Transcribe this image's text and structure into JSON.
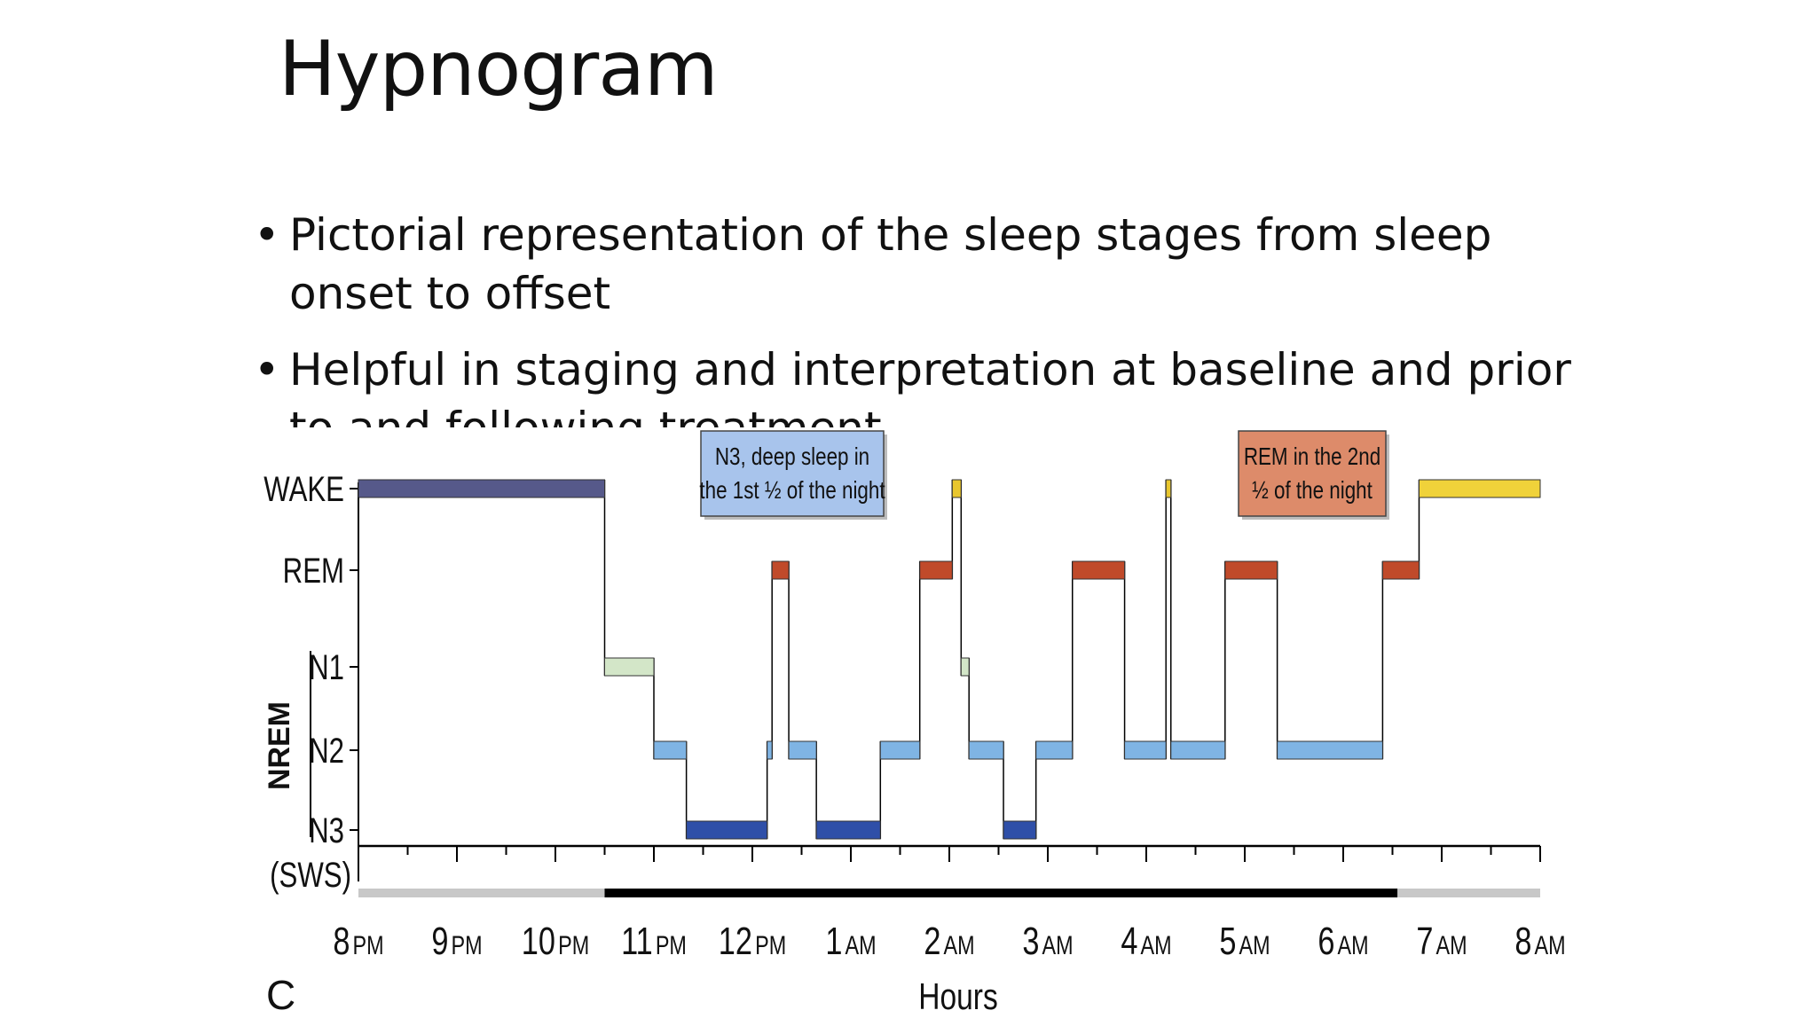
{
  "slide": {
    "title": "Hypnogram",
    "bullets": [
      "Pictorial representation of the sleep stages  from sleep onset to offset",
      "Helpful in staging and interpretation at baseline and prior to and following treatment"
    ]
  },
  "chart_data": {
    "type": "line",
    "panel_label": "C",
    "xlabel": "Hours",
    "ylabel_group": "NREM",
    "x_ticks": [
      {
        "num": "8",
        "unit": "PM"
      },
      {
        "num": "9",
        "unit": "PM"
      },
      {
        "num": "10",
        "unit": "PM"
      },
      {
        "num": "11",
        "unit": "PM"
      },
      {
        "num": "12",
        "unit": "PM"
      },
      {
        "num": "1",
        "unit": "AM"
      },
      {
        "num": "2",
        "unit": "AM"
      },
      {
        "num": "3",
        "unit": "AM"
      },
      {
        "num": "4",
        "unit": "AM"
      },
      {
        "num": "5",
        "unit": "AM"
      },
      {
        "num": "6",
        "unit": "AM"
      },
      {
        "num": "7",
        "unit": "AM"
      },
      {
        "num": "8",
        "unit": "AM"
      }
    ],
    "stages": [
      {
        "name": "WAKE",
        "label": "WAKE",
        "color": "#56598a"
      },
      {
        "name": "REM",
        "label": "REM",
        "color": "#c04a2a"
      },
      {
        "name": "N1",
        "label": "N1",
        "color": "#d3e6c8"
      },
      {
        "name": "N2",
        "label": "N2",
        "color": "#7fb4e4"
      },
      {
        "name": "N3",
        "label": "N3",
        "color": "#2f4fa8"
      }
    ],
    "sws_label": "(SWS)",
    "xlim_hours_after_8pm": [
      0,
      12
    ],
    "segments": [
      {
        "stage": "WAKE",
        "start": 0.0,
        "end": 2.5
      },
      {
        "stage": "N1",
        "start": 2.5,
        "end": 3.0
      },
      {
        "stage": "N2",
        "start": 3.0,
        "end": 3.33
      },
      {
        "stage": "N3",
        "start": 3.33,
        "end": 4.15
      },
      {
        "stage": "N2",
        "start": 4.15,
        "end": 4.2
      },
      {
        "stage": "REM",
        "start": 4.2,
        "end": 4.37
      },
      {
        "stage": "N2",
        "start": 4.37,
        "end": 4.65
      },
      {
        "stage": "N3",
        "start": 4.65,
        "end": 5.3
      },
      {
        "stage": "N2",
        "start": 5.3,
        "end": 5.7
      },
      {
        "stage": "REM",
        "start": 5.7,
        "end": 6.03
      },
      {
        "stage": "WAKE",
        "start": 6.03,
        "end": 6.12
      },
      {
        "stage": "N1",
        "start": 6.12,
        "end": 6.2
      },
      {
        "stage": "N2",
        "start": 6.2,
        "end": 6.55
      },
      {
        "stage": "N3",
        "start": 6.55,
        "end": 6.88
      },
      {
        "stage": "N2",
        "start": 6.88,
        "end": 7.25
      },
      {
        "stage": "REM",
        "start": 7.25,
        "end": 7.78
      },
      {
        "stage": "N2",
        "start": 7.78,
        "end": 8.2
      },
      {
        "stage": "WAKE",
        "start": 8.2,
        "end": 8.25
      },
      {
        "stage": "N2",
        "start": 8.25,
        "end": 8.8
      },
      {
        "stage": "REM",
        "start": 8.8,
        "end": 9.33
      },
      {
        "stage": "N2",
        "start": 9.33,
        "end": 10.4
      },
      {
        "stage": "REM",
        "start": 10.4,
        "end": 10.77
      },
      {
        "stage": "WAKE",
        "start": 10.77,
        "end": 12.0
      }
    ],
    "wake_colors": {
      "pre_sleep": "#56598a",
      "in_sleep": "#e8c62e",
      "post_sleep": "#f0d23a"
    },
    "sleep_period": {
      "start": 2.5,
      "end": 10.55
    },
    "annotations": [
      {
        "text": [
          "N3, deep sleep in",
          "the 1st ½ of the night"
        ],
        "fill": "#a8c4ec"
      },
      {
        "text": [
          "REM in the 2nd",
          "½ of the night"
        ],
        "fill": "#dd8b6a"
      }
    ]
  }
}
